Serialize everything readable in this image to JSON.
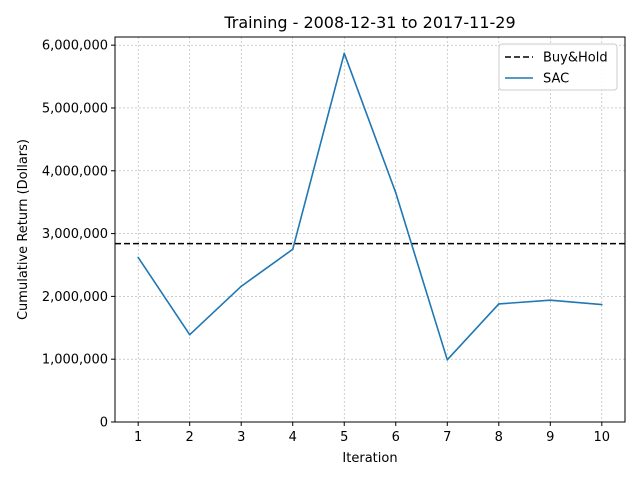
{
  "chart_data": {
    "type": "line",
    "title": "Training - 2008-12-31 to 2017-11-29",
    "xlabel": "Iteration",
    "ylabel": "Cumulative Return (Dollars)",
    "x": [
      1,
      2,
      3,
      4,
      5,
      6,
      7,
      8,
      9,
      10
    ],
    "xlim": [
      0.55,
      10.45
    ],
    "ylim": [
      0,
      6130000
    ],
    "yticks": [
      0,
      1000000,
      2000000,
      3000000,
      4000000,
      5000000,
      6000000
    ],
    "ytick_labels": [
      "0",
      "1,000,000",
      "2,000,000",
      "3,000,000",
      "4,000,000",
      "5,000,000",
      "6,000,000"
    ],
    "xtick_labels": [
      "1",
      "2",
      "3",
      "4",
      "5",
      "6",
      "7",
      "8",
      "9",
      "10"
    ],
    "grid": true,
    "legend_position": "top-right",
    "series": [
      {
        "name": "Buy&Hold",
        "kind": "hline",
        "value": 2840000,
        "color": "#000000",
        "style": "dashed"
      },
      {
        "name": "SAC",
        "kind": "line",
        "values": [
          2620000,
          1390000,
          2160000,
          2750000,
          5870000,
          3650000,
          990000,
          1880000,
          1940000,
          1870000
        ],
        "color": "#1f77b4",
        "style": "solid"
      }
    ]
  }
}
